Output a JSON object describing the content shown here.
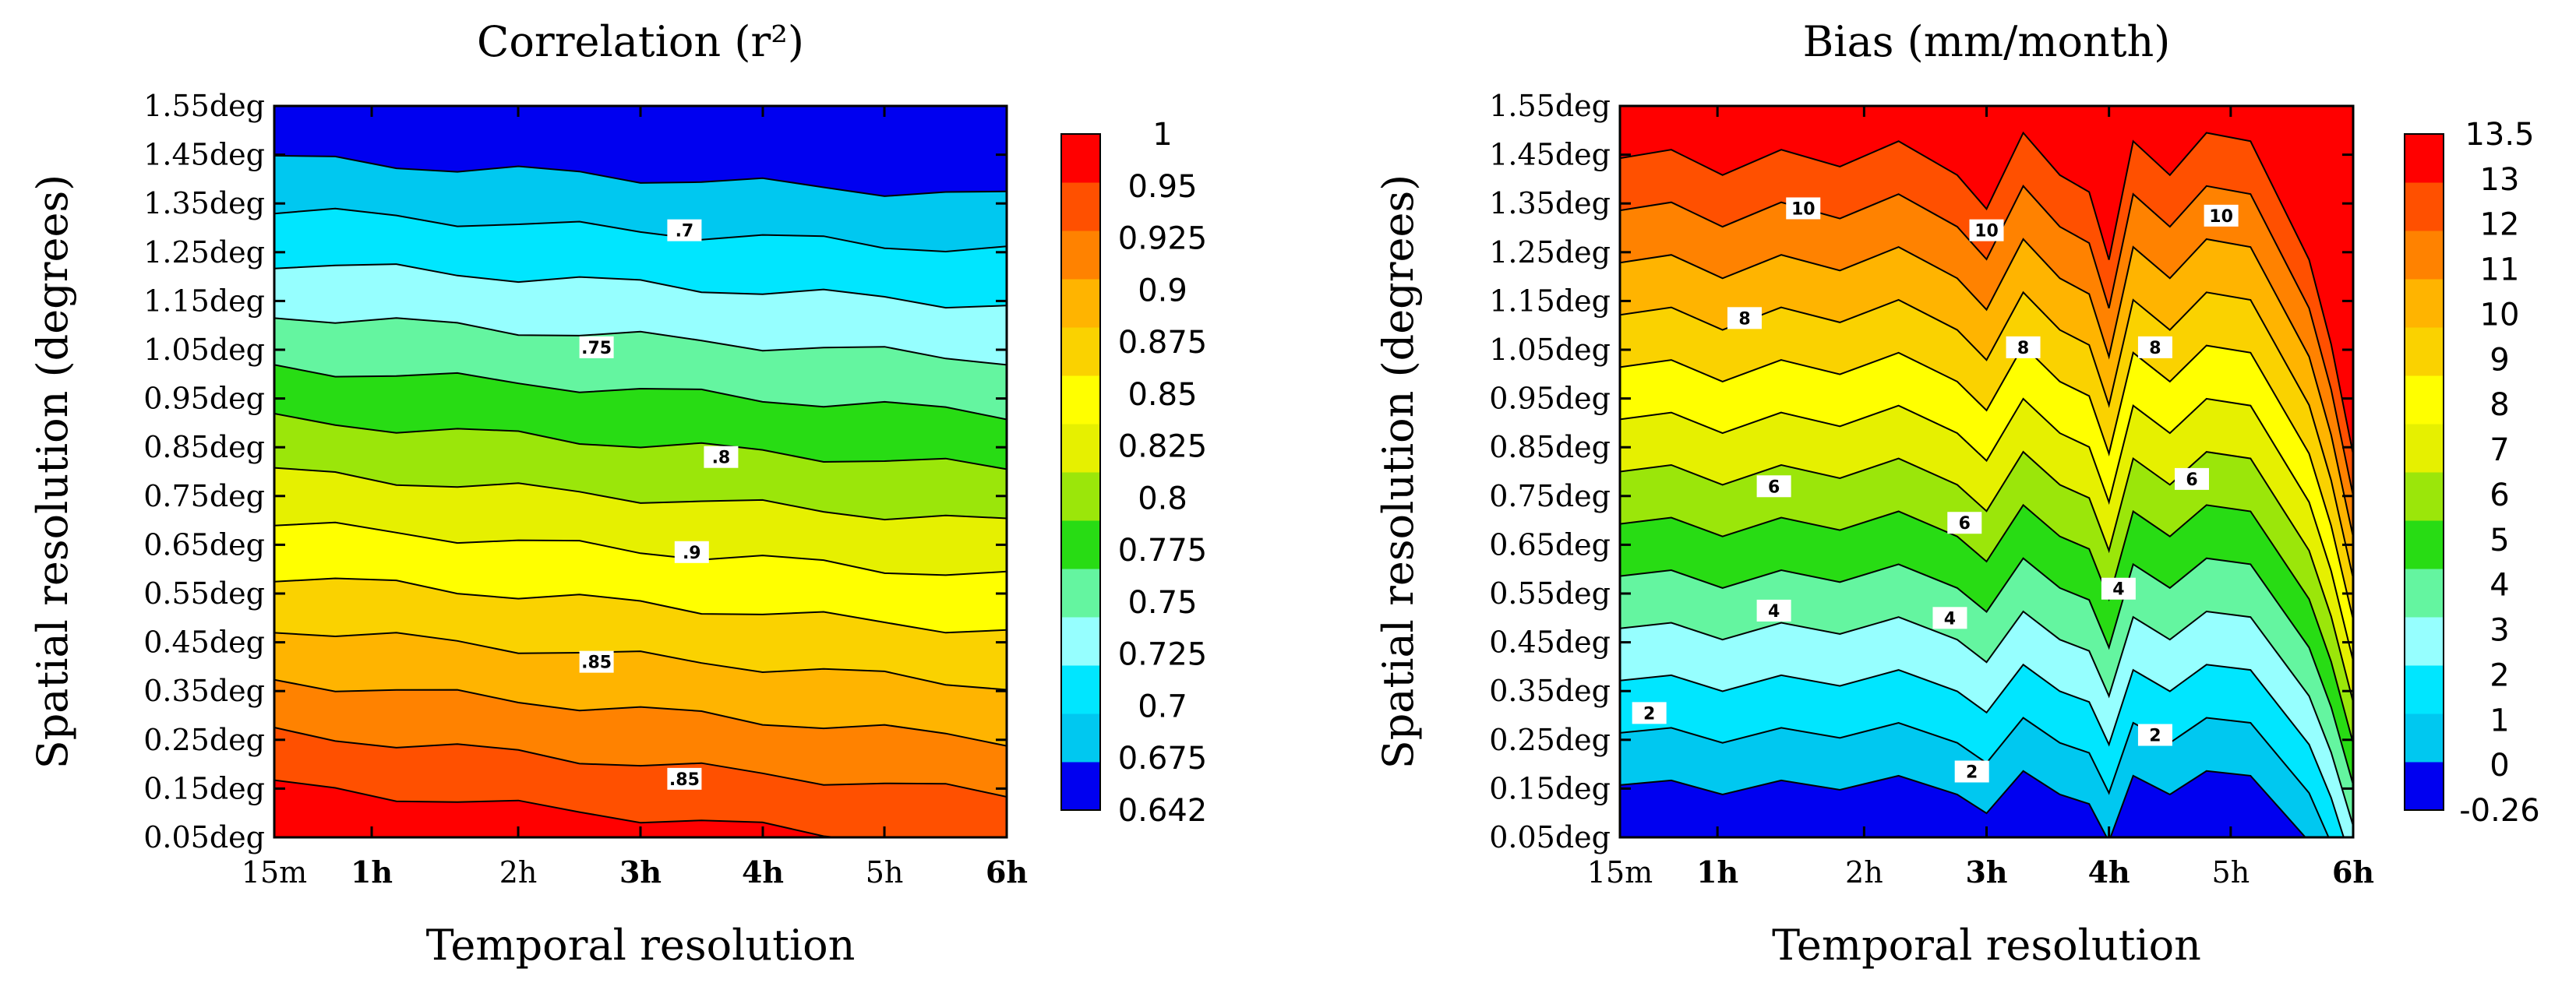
{
  "chart_data": [
    {
      "type": "contour",
      "title": "Correlation (r²)",
      "xlabel": "Temporal resolution",
      "ylabel": "Spatial resolution (degrees)",
      "x_ticks": [
        "15m",
        "1h",
        "2h",
        "3h",
        "4h",
        "5h",
        "6h"
      ],
      "y_ticks": [
        "0.05deg",
        "0.15deg",
        "0.25deg",
        "0.35deg",
        "0.45deg",
        "0.55deg",
        "0.65deg",
        "0.75deg",
        "0.85deg",
        "0.95deg",
        "1.05deg",
        "1.15deg",
        "1.25deg",
        "1.35deg",
        "1.45deg",
        "1.55deg"
      ],
      "levels": [
        "0.642",
        "0.675",
        "0.7",
        "0.725",
        "0.75",
        "0.775",
        "0.8",
        "0.825",
        "0.85",
        "0.875",
        "0.9",
        "0.925",
        "0.95",
        "1"
      ],
      "colors": [
        "#0000f0",
        "#00c8f0",
        "#00e6ff",
        "#96ffff",
        "#64f5a0",
        "#28dc14",
        "#9be60a",
        "#e6f000",
        "#ffff00",
        "#fad200",
        "#ffb400",
        "#ff8200",
        "#ff5000",
        "#ff0000"
      ],
      "contour_labels": [
        ".7",
        ".75",
        ".8",
        ".85",
        ".9",
        ".85"
      ]
    },
    {
      "type": "contour",
      "title": "Bias (mm/month)",
      "xlabel": "Temporal resolution",
      "ylabel": "Spatial resolution (degrees)",
      "x_ticks": [
        "15m",
        "1h",
        "2h",
        "3h",
        "4h",
        "5h",
        "6h"
      ],
      "y_ticks": [
        "0.05deg",
        "0.15deg",
        "0.25deg",
        "0.35deg",
        "0.45deg",
        "0.55deg",
        "0.65deg",
        "0.75deg",
        "0.85deg",
        "0.95deg",
        "1.05deg",
        "1.15deg",
        "1.25deg",
        "1.35deg",
        "1.45deg",
        "1.55deg"
      ],
      "levels": [
        "-0.26",
        "0",
        "1",
        "2",
        "3",
        "4",
        "5",
        "6",
        "7",
        "8",
        "9",
        "10",
        "11",
        "12",
        "13",
        "13.5"
      ],
      "colors": [
        "#0000f0",
        "#00c8f0",
        "#00e6ff",
        "#96ffff",
        "#64f5a0",
        "#28dc14",
        "#9be60a",
        "#e6f000",
        "#ffff00",
        "#fad200",
        "#ffb400",
        "#ff8200",
        "#ff5000",
        "#ff0000"
      ],
      "contour_labels": [
        "10",
        "10",
        "10",
        "8",
        "8",
        "8",
        "6",
        "6",
        "6",
        "4",
        "4",
        "4",
        "2",
        "2",
        "2"
      ]
    }
  ]
}
